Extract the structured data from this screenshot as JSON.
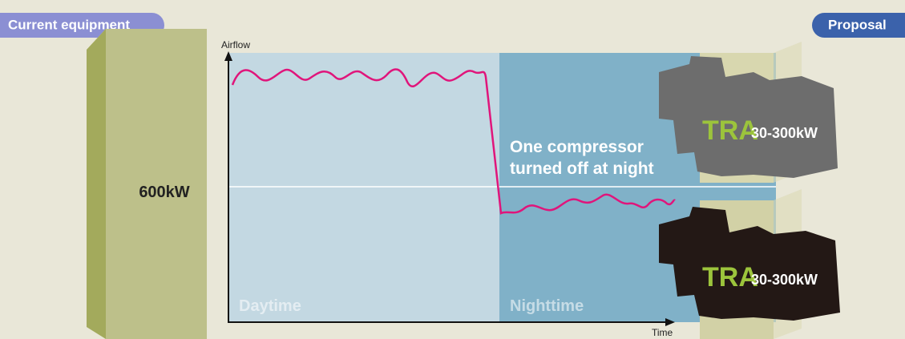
{
  "badges": {
    "current": "Current equipment",
    "proposal": "Proposal"
  },
  "current_unit": {
    "capacity": "600kW"
  },
  "graph": {
    "y_label": "Airflow",
    "x_label": "Time",
    "regions": [
      "Daytime",
      "Nighttime"
    ],
    "annotation": [
      "One compressor",
      "turned off at night"
    ]
  },
  "proposal_units": [
    {
      "model": "TRA",
      "range": "30-300kW"
    },
    {
      "model": "TRA",
      "range": "30-300kW"
    }
  ]
}
